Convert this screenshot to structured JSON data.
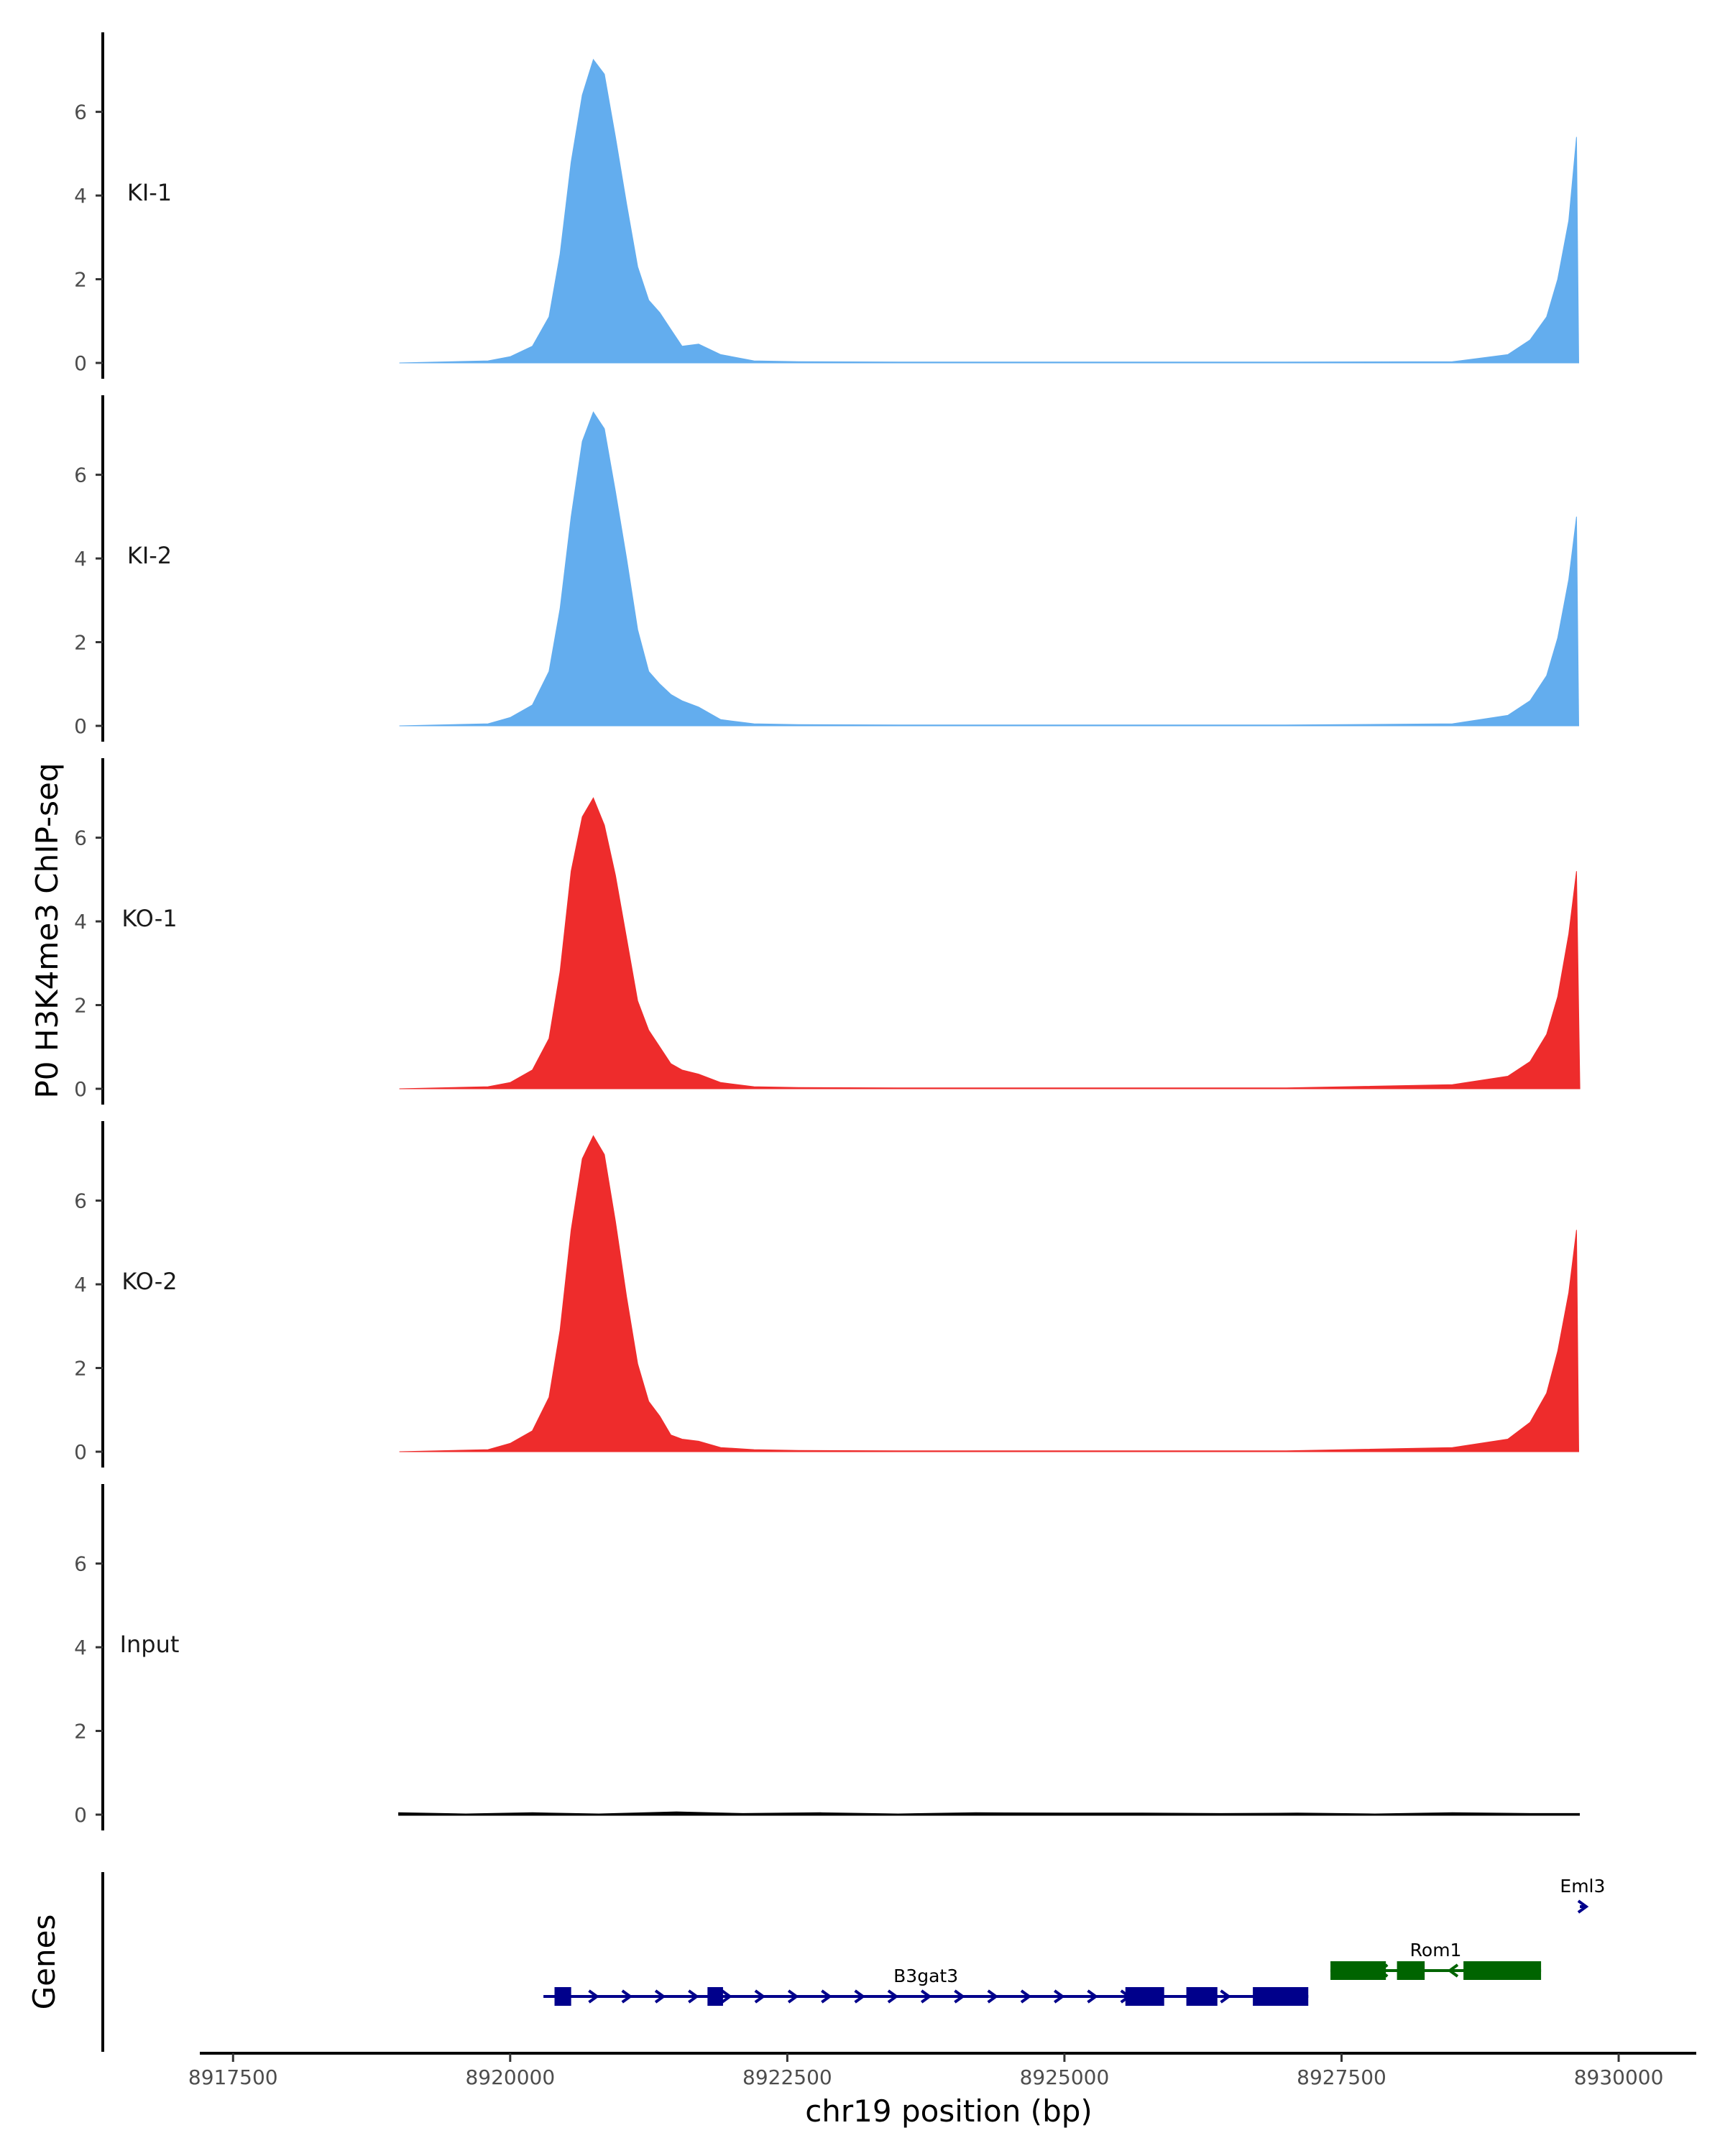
{
  "chart_data": {
    "type": "area",
    "ylabel": "P0 H3K4me3 ChIP-seq",
    "xlabel": "chr19 position (bp)",
    "xlim": [
      8917200,
      8930700
    ],
    "ylim": [
      0,
      7.9
    ],
    "x_ticks": [
      8917500,
      8920000,
      8922500,
      8925000,
      8927500,
      8930000
    ],
    "x_tick_labels": [
      "8917500",
      "8920000",
      "8922500",
      "8925000",
      "8927500",
      "8930000"
    ],
    "y_ticks": [
      0,
      2,
      4,
      6
    ],
    "y_tick_labels": [
      "0",
      "2",
      "4",
      "6"
    ],
    "grid": false,
    "tracks": [
      {
        "name": "KI-1",
        "color": "#63ADEE",
        "x": [
          8919000,
          8919800,
          8920000,
          8920200,
          8920350,
          8920450,
          8920550,
          8920650,
          8920750,
          8920850,
          8920950,
          8921050,
          8921150,
          8921250,
          8921350,
          8921450,
          8921550,
          8921700,
          8921900,
          8922200,
          8922600,
          8923500,
          8925000,
          8927000,
          8928500,
          8929000,
          8929200,
          8929350,
          8929450,
          8929550,
          8929620,
          8929640
        ],
        "y": [
          0,
          0.05,
          0.15,
          0.4,
          1.1,
          2.6,
          4.8,
          6.4,
          7.25,
          6.9,
          5.4,
          3.8,
          2.3,
          1.5,
          1.2,
          0.8,
          0.4,
          0.45,
          0.2,
          0.05,
          0.03,
          0.02,
          0.02,
          0.02,
          0.03,
          0.2,
          0.55,
          1.1,
          2.0,
          3.4,
          5.4,
          0
        ]
      },
      {
        "name": "KI-2",
        "color": "#63ADEE",
        "x": [
          8919000,
          8919800,
          8920000,
          8920200,
          8920350,
          8920450,
          8920550,
          8920650,
          8920750,
          8920850,
          8920950,
          8921050,
          8921150,
          8921250,
          8921350,
          8921450,
          8921550,
          8921700,
          8921900,
          8922200,
          8922600,
          8923500,
          8925000,
          8927000,
          8928500,
          8929000,
          8929200,
          8929350,
          8929450,
          8929550,
          8929620,
          8929640
        ],
        "y": [
          0,
          0.05,
          0.2,
          0.5,
          1.3,
          2.8,
          5.0,
          6.8,
          7.5,
          7.1,
          5.6,
          4.0,
          2.3,
          1.3,
          1.0,
          0.75,
          0.6,
          0.45,
          0.15,
          0.05,
          0.03,
          0.02,
          0.02,
          0.02,
          0.05,
          0.25,
          0.6,
          1.2,
          2.1,
          3.5,
          5.0,
          0
        ]
      },
      {
        "name": "KO-1",
        "color": "#EE2C2C",
        "x": [
          8919000,
          8919800,
          8920000,
          8920200,
          8920350,
          8920450,
          8920550,
          8920650,
          8920750,
          8920850,
          8920950,
          8921050,
          8921150,
          8921250,
          8921350,
          8921450,
          8921550,
          8921700,
          8921900,
          8922200,
          8922600,
          8923500,
          8925000,
          8927000,
          8928500,
          8929000,
          8929200,
          8929350,
          8929450,
          8929550,
          8929620,
          8929650
        ],
        "y": [
          0,
          0.05,
          0.15,
          0.45,
          1.2,
          2.8,
          5.2,
          6.5,
          6.95,
          6.3,
          5.1,
          3.6,
          2.1,
          1.4,
          1.0,
          0.6,
          0.45,
          0.35,
          0.15,
          0.05,
          0.03,
          0.02,
          0.02,
          0.02,
          0.1,
          0.3,
          0.65,
          1.3,
          2.2,
          3.7,
          5.2,
          0
        ]
      },
      {
        "name": "KO-2",
        "color": "#EE2C2C",
        "x": [
          8919000,
          8919800,
          8920000,
          8920200,
          8920350,
          8920450,
          8920550,
          8920650,
          8920750,
          8920850,
          8920950,
          8921050,
          8921150,
          8921250,
          8921350,
          8921450,
          8921550,
          8921700,
          8921900,
          8922200,
          8922600,
          8923500,
          8925000,
          8927000,
          8928500,
          8929000,
          8929200,
          8929350,
          8929450,
          8929550,
          8929620,
          8929640
        ],
        "y": [
          0,
          0.05,
          0.2,
          0.5,
          1.3,
          2.9,
          5.3,
          7.0,
          7.55,
          7.1,
          5.5,
          3.7,
          2.1,
          1.2,
          0.85,
          0.4,
          0.3,
          0.25,
          0.1,
          0.05,
          0.03,
          0.02,
          0.02,
          0.02,
          0.1,
          0.3,
          0.7,
          1.4,
          2.4,
          3.8,
          5.3,
          0
        ]
      },
      {
        "name": "Input",
        "color": "#000000",
        "x": [
          8919000,
          8919600,
          8920200,
          8920800,
          8921500,
          8922100,
          8922800,
          8923500,
          8924200,
          8925000,
          8925700,
          8926400,
          8927100,
          8927800,
          8928500,
          8929200,
          8929640
        ],
        "y": [
          0.03,
          0.0,
          0.03,
          0.0,
          0.05,
          0.01,
          0.03,
          0.0,
          0.03,
          0.02,
          0.02,
          0.01,
          0.02,
          0.0,
          0.03,
          0.01,
          0.01
        ]
      }
    ],
    "genes_track": {
      "label": "Genes",
      "genes": [
        {
          "name": "B3gat3",
          "strand": "+",
          "color": "#00008B",
          "start": 8920300,
          "end": 8927200,
          "exons": [
            [
              8920400,
              8920550
            ],
            [
              8921780,
              8921920
            ],
            [
              8925550,
              8925900
            ],
            [
              8926100,
              8926380
            ],
            [
              8926700,
              8927200
            ]
          ],
          "arrow_count": 23
        },
        {
          "name": "Rom1",
          "strand": "-",
          "color": "#006400",
          "start": 8927400,
          "end": 8929300,
          "exons": [
            [
              8927400,
              8927900
            ],
            [
              8928000,
              8928250
            ],
            [
              8928600,
              8929300
            ]
          ],
          "arrow_count": 6
        },
        {
          "name": "Eml3",
          "strand": "+",
          "color": "#00008B",
          "start": 8929650,
          "end": 8929700,
          "exons": [],
          "arrow_count": 1
        }
      ]
    }
  }
}
